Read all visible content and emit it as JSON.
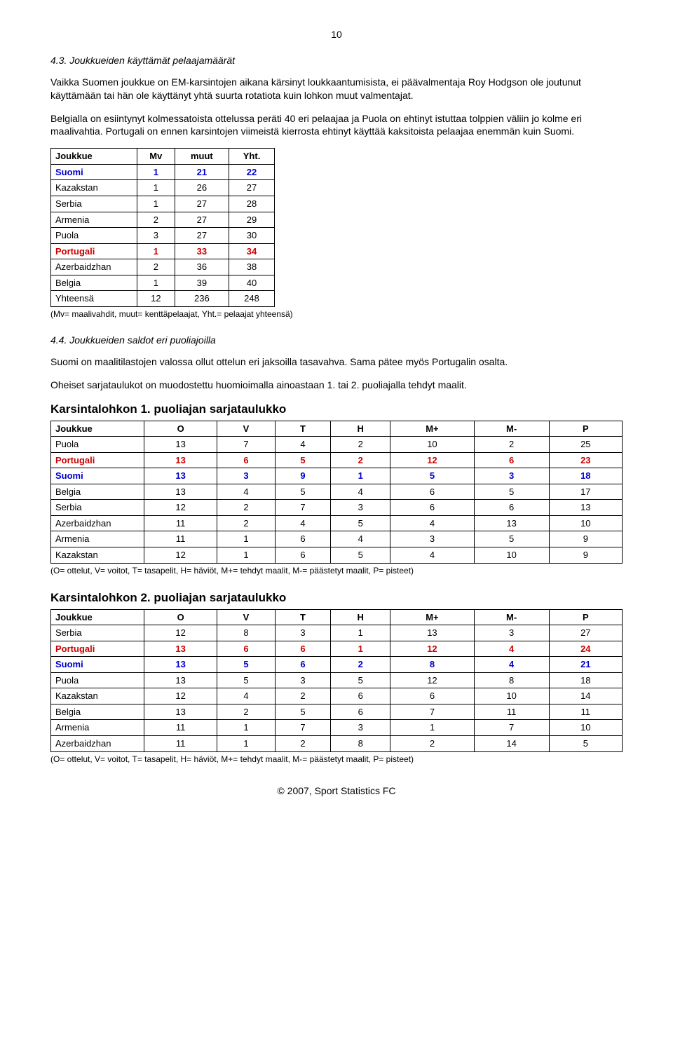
{
  "page_number": "10",
  "section_4_3": {
    "heading": "4.3. Joukkueiden käyttämät pelaajamäärät",
    "para1": "Vaikka Suomen joukkue on EM-karsintojen aikana kärsinyt loukkaantumisista, ei päävalmentaja Roy Hodgson ole joutunut käyttämään tai hän ole käyttänyt yhtä suurta rotatiota kuin lohkon muut valmentajat.",
    "para2": "Belgialla on esiintynyt kolmessatoista ottelussa peräti 40 eri pelaajaa ja Puola on ehtinyt istuttaa tolppien väliin jo kolme eri maalivahtia. Portugali on ennen karsintojen viimeistä kierrosta ehtinyt käyttää kaksitoista pelaajaa enemmän kuin Suomi.",
    "table": {
      "headers": [
        "Joukkue",
        "Mv",
        "muut",
        "Yht."
      ],
      "rows": [
        {
          "cells": [
            "Suomi",
            "1",
            "21",
            "22"
          ],
          "style": "blue-bold"
        },
        {
          "cells": [
            "Kazakstan",
            "1",
            "26",
            "27"
          ],
          "style": ""
        },
        {
          "cells": [
            "Serbia",
            "1",
            "27",
            "28"
          ],
          "style": ""
        },
        {
          "cells": [
            "Armenia",
            "2",
            "27",
            "29"
          ],
          "style": ""
        },
        {
          "cells": [
            "Puola",
            "3",
            "27",
            "30"
          ],
          "style": ""
        },
        {
          "cells": [
            "Portugali",
            "1",
            "33",
            "34"
          ],
          "style": "red-bold"
        },
        {
          "cells": [
            "Azerbaidzhan",
            "2",
            "36",
            "38"
          ],
          "style": ""
        },
        {
          "cells": [
            "Belgia",
            "1",
            "39",
            "40"
          ],
          "style": ""
        },
        {
          "cells": [
            "Yhteensä",
            "12",
            "236",
            "248"
          ],
          "style": ""
        }
      ],
      "note": "(Mv= maalivahdit, muut= kenttäpelaajat, Yht.= pelaajat yhteensä)"
    }
  },
  "section_4_4": {
    "heading": "4.4. Joukkueiden saldot eri puoliajoilla",
    "para1": "Suomi on maalitilastojen valossa ollut ottelun eri jaksoilla tasavahva. Sama pätee myös Portugalin osalta.",
    "para2": "Oheiset sarjataulukot on muodostettu huomioimalla ainoastaan 1. tai 2. puoliajalla tehdyt maalit.",
    "table1_title": "Karsintalohkon 1. puoliajan sarjataulukko",
    "table1": {
      "headers": [
        "Joukkue",
        "O",
        "V",
        "T",
        "H",
        "M+",
        "M-",
        "P"
      ],
      "rows": [
        {
          "cells": [
            "Puola",
            "13",
            "7",
            "4",
            "2",
            "10",
            "2",
            "25"
          ],
          "style": ""
        },
        {
          "cells": [
            "Portugali",
            "13",
            "6",
            "5",
            "2",
            "12",
            "6",
            "23"
          ],
          "style": "red-bold"
        },
        {
          "cells": [
            "Suomi",
            "13",
            "3",
            "9",
            "1",
            "5",
            "3",
            "18"
          ],
          "style": "blue-bold"
        },
        {
          "cells": [
            "Belgia",
            "13",
            "4",
            "5",
            "4",
            "6",
            "5",
            "17"
          ],
          "style": ""
        },
        {
          "cells": [
            "Serbia",
            "12",
            "2",
            "7",
            "3",
            "6",
            "6",
            "13"
          ],
          "style": ""
        },
        {
          "cells": [
            "Azerbaidzhan",
            "11",
            "2",
            "4",
            "5",
            "4",
            "13",
            "10"
          ],
          "style": ""
        },
        {
          "cells": [
            "Armenia",
            "11",
            "1",
            "6",
            "4",
            "3",
            "5",
            "9"
          ],
          "style": ""
        },
        {
          "cells": [
            "Kazakstan",
            "12",
            "1",
            "6",
            "5",
            "4",
            "10",
            "9"
          ],
          "style": ""
        }
      ],
      "note": "(O= ottelut, V= voitot, T= tasapelit, H= häviöt, M+= tehdyt maalit, M-= päästetyt maalit, P= pisteet)"
    },
    "table2_title": "Karsintalohkon 2. puoliajan sarjataulukko",
    "table2": {
      "headers": [
        "Joukkue",
        "O",
        "V",
        "T",
        "H",
        "M+",
        "M-",
        "P"
      ],
      "rows": [
        {
          "cells": [
            "Serbia",
            "12",
            "8",
            "3",
            "1",
            "13",
            "3",
            "27"
          ],
          "style": ""
        },
        {
          "cells": [
            "Portugali",
            "13",
            "6",
            "6",
            "1",
            "12",
            "4",
            "24"
          ],
          "style": "red-bold"
        },
        {
          "cells": [
            "Suomi",
            "13",
            "5",
            "6",
            "2",
            "8",
            "4",
            "21"
          ],
          "style": "blue-bold"
        },
        {
          "cells": [
            "Puola",
            "13",
            "5",
            "3",
            "5",
            "12",
            "8",
            "18"
          ],
          "style": ""
        },
        {
          "cells": [
            "Kazakstan",
            "12",
            "4",
            "2",
            "6",
            "6",
            "10",
            "14"
          ],
          "style": ""
        },
        {
          "cells": [
            "Belgia",
            "13",
            "2",
            "5",
            "6",
            "7",
            "11",
            "11"
          ],
          "style": ""
        },
        {
          "cells": [
            "Armenia",
            "11",
            "1",
            "7",
            "3",
            "1",
            "7",
            "10"
          ],
          "style": ""
        },
        {
          "cells": [
            "Azerbaidzhan",
            "11",
            "1",
            "2",
            "8",
            "2",
            "14",
            "5"
          ],
          "style": ""
        }
      ],
      "note": "(O= ottelut, V= voitot, T= tasapelit, H= häviöt, M+= tehdyt maalit, M-= päästetyt maalit, P= pisteet)"
    }
  },
  "footer": "© 2007, Sport Statistics FC"
}
